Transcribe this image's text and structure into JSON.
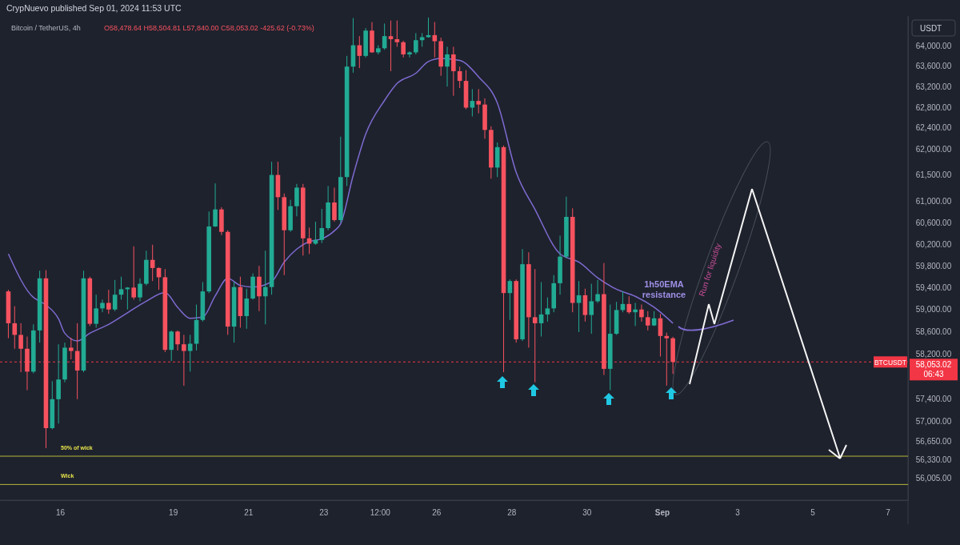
{
  "chart_data": {
    "type": "candlestick",
    "title": "Bitcoin / TetherUS, 4h",
    "subtitle": "O58,478.64 H58,504.81 L57,840.00 C58,053.02 -425.62 (-0.73%)",
    "ylabel": "USDT",
    "log": true,
    "annotations": [
      "CrypNuevo published Sep 01, 2024 11:53 UTC",
      "58,053.02",
      "06:43",
      "1h50EMA resistance",
      "Run for liquidity"
    ],
    "ylim": [
      55630,
      64590
    ],
    "yticks": [
      {
        "value": 64000,
        "label": "64,000.00"
      },
      {
        "value": 63600,
        "label": "63,600.00"
      },
      {
        "value": 63200,
        "label": "63,200.00"
      },
      {
        "value": 62800,
        "label": "62,800.00"
      },
      {
        "value": 62400,
        "label": "62,400.00"
      },
      {
        "value": 62000,
        "label": "62,000.00"
      },
      {
        "value": 61500,
        "label": "61,500.00"
      },
      {
        "value": 61000,
        "label": "61,000.00"
      },
      {
        "value": 60600,
        "label": "60,600.00"
      },
      {
        "value": 60200,
        "label": "60,200.00"
      },
      {
        "value": 59800,
        "label": "59,800.00"
      },
      {
        "value": 59400,
        "label": "59,400.00"
      },
      {
        "value": 59000,
        "label": "59,000.00"
      },
      {
        "value": 58600,
        "label": "58,600.00"
      },
      {
        "value": 58200,
        "label": "58,200.00"
      },
      {
        "value": 57400,
        "label": "57,400.00"
      },
      {
        "value": 57000,
        "label": "57,000.00"
      },
      {
        "value": 56650,
        "label": "56,650.00"
      },
      {
        "value": 56330,
        "label": "56,330.00"
      },
      {
        "value": 56005,
        "label": "56,005.00"
      }
    ],
    "xlim": [
      "2024-08-14T09:40",
      "2024-09-07T13:00"
    ],
    "xticks": [
      {
        "value": "2024-08-16",
        "label": "16"
      },
      {
        "value": "2024-08-19",
        "label": "19"
      },
      {
        "value": "2024-08-21",
        "label": "21"
      },
      {
        "value": "2024-08-23",
        "label": "23"
      },
      {
        "value": "2024-08-24T12:00",
        "label": "12:00"
      },
      {
        "value": "2024-08-26",
        "label": "26"
      },
      {
        "value": "2024-08-28",
        "label": "28"
      },
      {
        "value": "2024-08-30",
        "label": "30"
      },
      {
        "value": "2024-09-01",
        "label": "Sep"
      },
      {
        "value": "2024-09-03",
        "label": "3"
      },
      {
        "value": "2024-09-05",
        "label": "5"
      },
      {
        "value": "2024-09-07",
        "label": "7"
      }
    ],
    "ref_lines": [
      {
        "axis": "y",
        "value": 58053.02,
        "label": "BTCUSDT",
        "color": "#f23645",
        "line_style": "dashed"
      },
      {
        "axis": "y",
        "value": 56390,
        "label": "50% of wick",
        "color": "#b5b83a"
      },
      {
        "axis": "y",
        "value": 55900,
        "label": "Wick",
        "color": "#b5b83a"
      }
    ],
    "x": [
      "2024-08-14T15:00",
      "2024-08-14T19:00",
      "2024-08-14T23:00",
      "2024-08-15T03:00",
      "2024-08-15T07:00",
      "2024-08-15T11:00",
      "2024-08-15T15:00",
      "2024-08-15T19:00",
      "2024-08-15T23:00",
      "2024-08-16T03:00",
      "2024-08-16T07:00",
      "2024-08-16T11:00",
      "2024-08-16T15:00",
      "2024-08-16T19:00",
      "2024-08-16T23:00",
      "2024-08-17T03:00",
      "2024-08-17T07:00",
      "2024-08-17T11:00",
      "2024-08-17T15:00",
      "2024-08-17T19:00",
      "2024-08-17T23:00",
      "2024-08-18T03:00",
      "2024-08-18T07:00",
      "2024-08-18T11:00",
      "2024-08-18T15:00",
      "2024-08-18T19:00",
      "2024-08-18T23:00",
      "2024-08-19T03:00",
      "2024-08-19T07:00",
      "2024-08-19T11:00",
      "2024-08-19T15:00",
      "2024-08-19T19:00",
      "2024-08-19T23:00",
      "2024-08-20T03:00",
      "2024-08-20T07:00",
      "2024-08-20T11:00",
      "2024-08-20T15:00",
      "2024-08-20T19:00",
      "2024-08-20T23:00",
      "2024-08-21T03:00",
      "2024-08-21T07:00",
      "2024-08-21T11:00",
      "2024-08-21T15:00",
      "2024-08-21T19:00",
      "2024-08-21T23:00",
      "2024-08-22T03:00",
      "2024-08-22T07:00",
      "2024-08-22T11:00",
      "2024-08-22T15:00",
      "2024-08-22T19:00",
      "2024-08-22T23:00",
      "2024-08-23T03:00",
      "2024-08-23T07:00",
      "2024-08-23T11:00",
      "2024-08-23T15:00",
      "2024-08-23T19:00",
      "2024-08-23T23:00",
      "2024-08-24T03:00",
      "2024-08-24T07:00",
      "2024-08-24T11:00",
      "2024-08-24T15:00",
      "2024-08-24T19:00",
      "2024-08-24T23:00",
      "2024-08-25T03:00",
      "2024-08-25T07:00",
      "2024-08-25T11:00",
      "2024-08-25T15:00",
      "2024-08-25T19:00",
      "2024-08-25T23:00",
      "2024-08-26T03:00",
      "2024-08-26T07:00",
      "2024-08-26T11:00",
      "2024-08-26T15:00",
      "2024-08-26T19:00",
      "2024-08-26T23:00",
      "2024-08-27T03:00",
      "2024-08-27T07:00",
      "2024-08-27T11:00",
      "2024-08-27T15:00",
      "2024-08-27T19:00",
      "2024-08-27T23:00",
      "2024-08-28T03:00",
      "2024-08-28T07:00",
      "2024-08-28T11:00",
      "2024-08-28T15:00",
      "2024-08-28T19:00",
      "2024-08-28T23:00",
      "2024-08-29T03:00",
      "2024-08-29T07:00",
      "2024-08-29T11:00",
      "2024-08-29T15:00",
      "2024-08-29T19:00",
      "2024-08-29T23:00",
      "2024-08-30T03:00",
      "2024-08-30T07:00",
      "2024-08-30T11:00",
      "2024-08-30T15:00",
      "2024-08-30T19:00",
      "2024-08-30T23:00",
      "2024-08-31T03:00",
      "2024-08-31T07:00",
      "2024-08-31T11:00",
      "2024-08-31T15:00",
      "2024-08-31T19:00",
      "2024-08-31T23:00",
      "2024-09-01T03:00",
      "2024-09-01T07:00"
    ],
    "ohlc": [
      [
        59330,
        59360,
        58480,
        58750
      ],
      [
        58750,
        59060,
        58290,
        58540
      ],
      [
        58540,
        58750,
        57870,
        58290
      ],
      [
        58290,
        58510,
        57550,
        57880
      ],
      [
        57880,
        58730,
        57850,
        58620
      ],
      [
        58620,
        59710,
        58400,
        59570
      ],
      [
        59570,
        59720,
        56530,
        56880
      ],
      [
        56880,
        57710,
        56860,
        57390
      ],
      [
        57390,
        58370,
        56960,
        57740
      ],
      [
        57740,
        58400,
        57690,
        58310
      ],
      [
        58310,
        58490,
        58100,
        58250
      ],
      [
        58250,
        58750,
        57390,
        57900
      ],
      [
        57900,
        59710,
        57870,
        59570
      ],
      [
        59570,
        59600,
        58700,
        58740
      ],
      [
        58740,
        59270,
        58670,
        59020
      ],
      [
        59020,
        59180,
        58950,
        59120
      ],
      [
        59120,
        59360,
        58920,
        59000
      ],
      [
        59000,
        59540,
        58970,
        59270
      ],
      [
        59270,
        59600,
        59180,
        59370
      ],
      [
        59370,
        59410,
        59000,
        59400
      ],
      [
        59400,
        60160,
        59180,
        59220
      ],
      [
        59220,
        59570,
        59150,
        59470
      ],
      [
        59470,
        60080,
        59440,
        59910
      ],
      [
        59910,
        60190,
        59520,
        59760
      ],
      [
        59760,
        59770,
        59360,
        59590
      ],
      [
        59590,
        59740,
        58230,
        58270
      ],
      [
        58270,
        58620,
        58070,
        58600
      ],
      [
        58600,
        58620,
        58260,
        58370
      ],
      [
        58370,
        58540,
        57630,
        58250
      ],
      [
        58250,
        58540,
        57880,
        58380
      ],
      [
        58380,
        59090,
        58260,
        58810
      ],
      [
        58810,
        59500,
        58780,
        59330
      ],
      [
        59330,
        60810,
        59300,
        60530
      ],
      [
        60530,
        61340,
        60520,
        60850
      ],
      [
        60850,
        60890,
        60370,
        60430
      ],
      [
        60430,
        60460,
        58540,
        58690
      ],
      [
        58690,
        59500,
        58400,
        59410
      ],
      [
        59410,
        59600,
        58670,
        58880
      ],
      [
        58880,
        59380,
        58650,
        59200
      ],
      [
        59200,
        59660,
        59180,
        59600
      ],
      [
        59600,
        59800,
        58970,
        59240
      ],
      [
        59240,
        60080,
        58730,
        59410
      ],
      [
        59410,
        61750,
        59270,
        61500
      ],
      [
        61500,
        61750,
        60840,
        61080
      ],
      [
        61080,
        61150,
        59630,
        60460
      ],
      [
        60460,
        61030,
        60430,
        60910
      ],
      [
        60910,
        61330,
        60720,
        61260
      ],
      [
        61260,
        61330,
        59990,
        60310
      ],
      [
        60310,
        60510,
        60020,
        60210
      ],
      [
        60210,
        60620,
        60190,
        60280
      ],
      [
        60280,
        60860,
        60220,
        60500
      ],
      [
        60500,
        61290,
        60460,
        60980
      ],
      [
        60980,
        61260,
        60620,
        60650
      ],
      [
        60650,
        62230,
        60600,
        61460
      ],
      [
        61460,
        63800,
        61290,
        63590
      ],
      [
        63590,
        64550,
        63470,
        64010
      ],
      [
        64010,
        64190,
        63560,
        63800
      ],
      [
        63800,
        64350,
        63770,
        64300
      ],
      [
        64300,
        64470,
        63860,
        63870
      ],
      [
        63870,
        64010,
        63830,
        63950
      ],
      [
        63950,
        64440,
        63920,
        64190
      ],
      [
        64190,
        64500,
        63500,
        64130
      ],
      [
        64130,
        64500,
        63980,
        64070
      ],
      [
        64070,
        64100,
        63770,
        63830
      ],
      [
        63830,
        63890,
        63770,
        63870
      ],
      [
        63870,
        64250,
        63830,
        64110
      ],
      [
        64110,
        64250,
        63980,
        64170
      ],
      [
        64170,
        64560,
        64160,
        64210
      ],
      [
        64210,
        64470,
        63770,
        64090
      ],
      [
        64090,
        64160,
        63410,
        63590
      ],
      [
        63590,
        63980,
        63200,
        63830
      ],
      [
        63830,
        63980,
        63020,
        63500
      ],
      [
        63500,
        63590,
        63170,
        63310
      ],
      [
        63310,
        63520,
        62760,
        62790
      ],
      [
        62790,
        63150,
        62620,
        62920
      ],
      [
        62920,
        63150,
        62680,
        62850
      ],
      [
        62850,
        62970,
        62190,
        62360
      ],
      [
        62360,
        62430,
        61430,
        61640
      ],
      [
        61640,
        62120,
        61460,
        62030
      ],
      [
        62030,
        62060,
        57870,
        59300
      ],
      [
        59300,
        59550,
        58810,
        59520
      ],
      [
        59520,
        59550,
        58400,
        58460
      ],
      [
        58460,
        60110,
        58430,
        59830
      ],
      [
        59830,
        60050,
        58310,
        58860
      ],
      [
        58860,
        59740,
        57690,
        58750
      ],
      [
        58750,
        59500,
        58510,
        58910
      ],
      [
        58910,
        59220,
        58780,
        59020
      ],
      [
        59020,
        59630,
        58950,
        59480
      ],
      [
        59480,
        60360,
        59270,
        59970
      ],
      [
        59970,
        61090,
        59940,
        60710
      ],
      [
        60710,
        60870,
        58950,
        59120
      ],
      [
        59120,
        59520,
        58590,
        59260
      ],
      [
        59260,
        59380,
        58780,
        58900
      ],
      [
        58900,
        59470,
        58560,
        59150
      ],
      [
        59150,
        59540,
        59120,
        59280
      ],
      [
        59280,
        59850,
        57820,
        57930
      ],
      [
        57930,
        59090,
        57550,
        58560
      ],
      [
        58560,
        59140,
        58540,
        58990
      ],
      [
        58990,
        59330,
        58950,
        59100
      ],
      [
        59100,
        59240,
        58920,
        58950
      ],
      [
        58950,
        59120,
        58700,
        59000
      ],
      [
        59000,
        59090,
        58780,
        58860
      ],
      [
        58860,
        58970,
        58620,
        58710
      ],
      [
        58710,
        58970,
        58700,
        58840
      ],
      [
        58840,
        58920,
        58150,
        58520
      ],
      [
        58520,
        58580,
        57630,
        58478.64
      ],
      [
        58478.64,
        58504.81,
        57840,
        58053.02
      ]
    ],
    "series": [
      {
        "type": "line",
        "color": "#7e6bd1",
        "x": [
          "2024-08-14T15:00",
          "2024-08-15T07:00",
          "2024-08-15T11:00",
          "2024-08-15T15:00",
          "2024-08-15T23:00",
          "2024-08-16T03:00",
          "2024-08-16T11:00",
          "2024-08-16T19:00",
          "2024-08-17T07:00",
          "2024-08-17T19:00",
          "2024-08-18T07:00",
          "2024-08-18T19:00",
          "2024-08-19T03:00",
          "2024-08-19T11:00",
          "2024-08-19T19:00",
          "2024-08-20T03:00",
          "2024-08-20T11:00",
          "2024-08-20T19:00",
          "2024-08-21T03:00",
          "2024-08-21T15:00",
          "2024-08-21T23:00",
          "2024-08-22T07:00",
          "2024-08-22T15:00",
          "2024-08-22T23:00",
          "2024-08-23T07:00",
          "2024-08-23T11:00",
          "2024-08-23T19:00",
          "2024-08-24T03:00",
          "2024-08-24T15:00",
          "2024-08-24T23:00",
          "2024-08-25T11:00",
          "2024-08-25T19:00",
          "2024-08-26T03:00",
          "2024-08-26T15:00",
          "2024-08-27T03:00",
          "2024-08-27T15:00",
          "2024-08-28T03:00",
          "2024-08-28T15:00",
          "2024-08-29T07:00",
          "2024-08-29T19:00",
          "2024-08-30T07:00",
          "2024-08-30T19:00",
          "2024-08-31T07:00",
          "2024-08-31T19:00",
          "2024-09-01T07:00"
        ],
        "values": [
          60020,
          59220,
          59150,
          59080,
          58830,
          58570,
          58430,
          58570,
          58730,
          58940,
          59150,
          59310,
          59040,
          58840,
          58860,
          59250,
          59570,
          59440,
          59410,
          59510,
          59870,
          60110,
          60250,
          60300,
          60450,
          60580,
          61490,
          62280,
          62930,
          63260,
          63460,
          63690,
          63750,
          63710,
          63390,
          62880,
          61550,
          60850,
          60020,
          59870,
          59580,
          59370,
          59240,
          59040,
          58750
        ]
      }
    ]
  }
}
